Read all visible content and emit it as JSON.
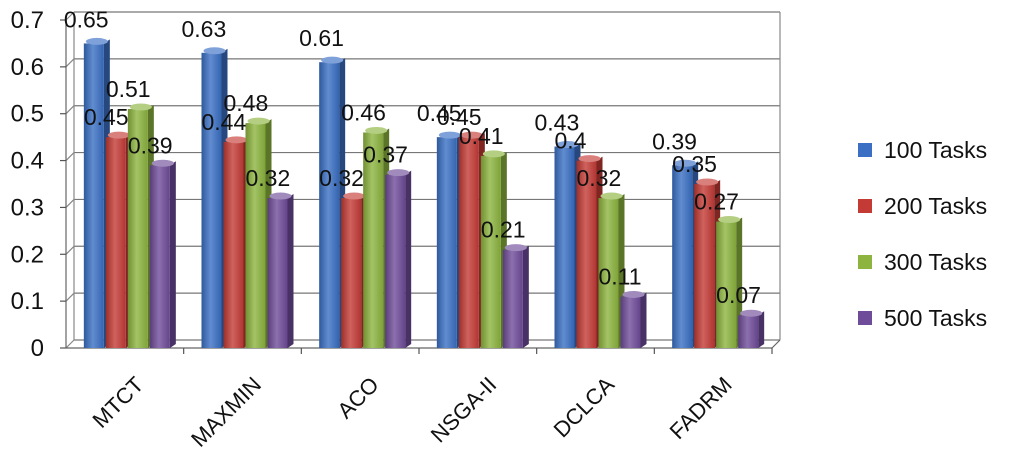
{
  "chart_data": {
    "type": "bar",
    "categories": [
      "MTCT",
      "MAXMIN",
      "ACO",
      "NSGA-II",
      "DCLCA",
      "FADRM"
    ],
    "series": [
      {
        "name": "100 Tasks",
        "values": [
          0.65,
          0.63,
          0.61,
          0.45,
          0.43,
          0.39
        ],
        "color": "#3A6FC4"
      },
      {
        "name": "200 Tasks",
        "values": [
          0.45,
          0.44,
          0.32,
          0.45,
          0.4,
          0.35
        ],
        "color": "#C43B36"
      },
      {
        "name": "300 Tasks",
        "values": [
          0.51,
          0.48,
          0.46,
          0.41,
          0.32,
          0.27
        ],
        "color": "#8CB43E"
      },
      {
        "name": "500 Tasks",
        "values": [
          0.39,
          0.32,
          0.37,
          0.21,
          0.11,
          0.07
        ],
        "color": "#6F4C9A"
      }
    ],
    "y_ticks": [
      "0",
      "0.1",
      "0.2",
      "0.3",
      "0.4",
      "0.5",
      "0.6",
      "0.7"
    ],
    "ylim": [
      0,
      0.7
    ],
    "grid": true,
    "legend_position": "right",
    "data_labels": true,
    "style": "3d-clustered"
  }
}
